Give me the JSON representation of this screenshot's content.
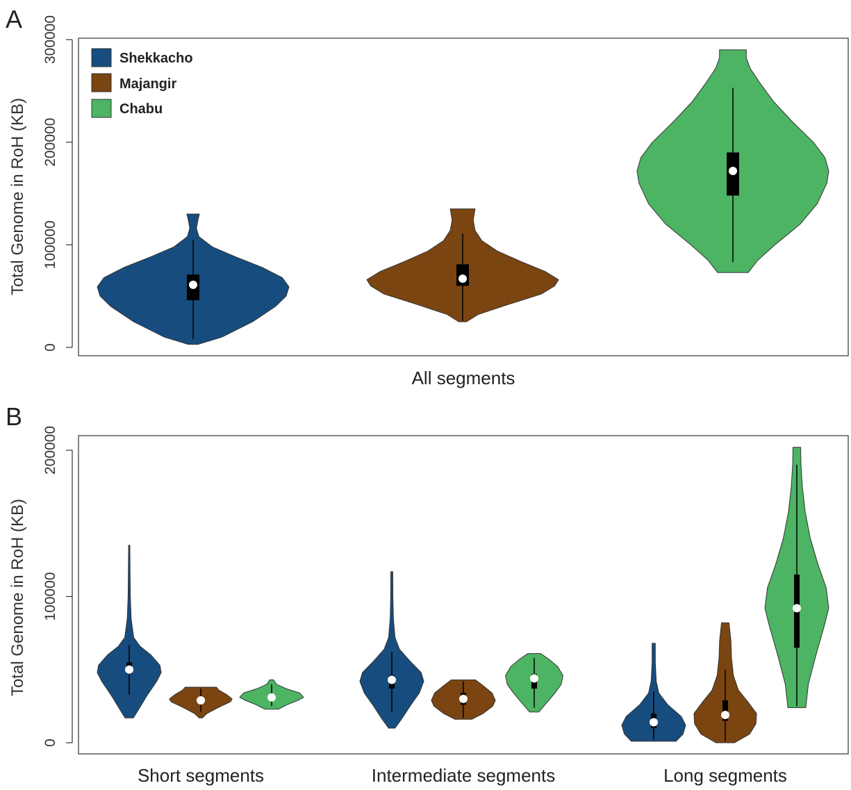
{
  "colors": {
    "Shekkacho": "#174C7E",
    "Majangir": "#7A4511",
    "Chabu": "#4CB463"
  },
  "chart_data": [
    {
      "panel": "A",
      "type": "violin",
      "ylabel": "Total Genome in RoH (KB)",
      "ylim": [
        0,
        300000
      ],
      "yticks": [
        0,
        100000,
        200000,
        300000
      ],
      "ytick_labels": [
        "0",
        "100000",
        "200000",
        "300000"
      ],
      "categories": [
        "All segments"
      ],
      "legend": {
        "placement": "top-left",
        "entries": [
          "Shekkacho",
          "Majangir",
          "Chabu"
        ]
      },
      "series": [
        {
          "name": "Shekkacho",
          "category": "All segments",
          "min": 3000,
          "max": 130000,
          "whisker_low": 8000,
          "whisker_high": 105000,
          "q1": 46000,
          "median": 61000,
          "q3": 71000,
          "profile": [
            [
              3000,
              0.05
            ],
            [
              10000,
              0.3
            ],
            [
              25000,
              0.62
            ],
            [
              40000,
              0.86
            ],
            [
              50000,
              0.97
            ],
            [
              59000,
              1.0
            ],
            [
              68000,
              0.93
            ],
            [
              78000,
              0.72
            ],
            [
              88000,
              0.45
            ],
            [
              98000,
              0.2
            ],
            [
              108000,
              0.06
            ],
            [
              116000,
              0.035
            ],
            [
              124000,
              0.05
            ],
            [
              130000,
              0.065
            ]
          ]
        },
        {
          "name": "Majangir",
          "category": "All segments",
          "min": 25000,
          "max": 135000,
          "whisker_low": 26000,
          "whisker_high": 111000,
          "q1": 60000,
          "median": 67000,
          "q3": 81000,
          "profile": [
            [
              25000,
              0.04
            ],
            [
              32000,
              0.16
            ],
            [
              42000,
              0.48
            ],
            [
              52000,
              0.82
            ],
            [
              60000,
              0.96
            ],
            [
              66000,
              1.0
            ],
            [
              74000,
              0.86
            ],
            [
              84000,
              0.6
            ],
            [
              94000,
              0.36
            ],
            [
              104000,
              0.2
            ],
            [
              114000,
              0.13
            ],
            [
              124000,
              0.11
            ],
            [
              130000,
              0.12
            ],
            [
              135000,
              0.13
            ]
          ]
        },
        {
          "name": "Chabu",
          "category": "All segments",
          "min": 73000,
          "max": 290000,
          "whisker_low": 83000,
          "whisker_high": 253000,
          "q1": 148000,
          "median": 172000,
          "q3": 190000,
          "profile": [
            [
              73000,
              0.16
            ],
            [
              85000,
              0.26
            ],
            [
              100000,
              0.44
            ],
            [
              120000,
              0.7
            ],
            [
              140000,
              0.88
            ],
            [
              160000,
              0.98
            ],
            [
              172000,
              1.0
            ],
            [
              185000,
              0.96
            ],
            [
              200000,
              0.84
            ],
            [
              220000,
              0.62
            ],
            [
              240000,
              0.42
            ],
            [
              258000,
              0.28
            ],
            [
              272000,
              0.18
            ],
            [
              282000,
              0.14
            ],
            [
              290000,
              0.14
            ]
          ]
        }
      ]
    },
    {
      "panel": "B",
      "type": "violin",
      "ylabel": "Total Genome in RoH (KB)",
      "ylim": [
        0,
        200000
      ],
      "yticks": [
        0,
        100000,
        200000
      ],
      "ytick_labels": [
        "0",
        "100000",
        "200000"
      ],
      "categories": [
        "Short segments",
        "Intermediate segments",
        "Long segments"
      ],
      "series": [
        {
          "name": "Shekkacho",
          "category": "Short segments",
          "min": 17000,
          "max": 135000,
          "whisker_low": 33000,
          "whisker_high": 67000,
          "q1": 47000,
          "median": 50000,
          "q3": 55000,
          "profile": [
            [
              17000,
              0.13
            ],
            [
              23000,
              0.3
            ],
            [
              32000,
              0.55
            ],
            [
              42000,
              0.86
            ],
            [
              48000,
              1.0
            ],
            [
              53000,
              0.96
            ],
            [
              60000,
              0.68
            ],
            [
              66000,
              0.34
            ],
            [
              72000,
              0.14
            ],
            [
              85000,
              0.06
            ],
            [
              100000,
              0.035
            ],
            [
              118000,
              0.025
            ],
            [
              135000,
              0.02
            ]
          ]
        },
        {
          "name": "Majangir",
          "category": "Short segments",
          "min": 17000,
          "max": 38000,
          "whisker_low": 21000,
          "whisker_high": 37000,
          "q1": 28000,
          "median": 29000,
          "q3": 31000,
          "profile": [
            [
              17000,
              0.05
            ],
            [
              20000,
              0.2
            ],
            [
              24000,
              0.55
            ],
            [
              28000,
              0.95
            ],
            [
              30000,
              1.0
            ],
            [
              33000,
              0.82
            ],
            [
              36000,
              0.58
            ],
            [
              38000,
              0.5
            ]
          ]
        },
        {
          "name": "Chabu",
          "category": "Short segments",
          "min": 23000,
          "max": 43000,
          "whisker_low": 25000,
          "whisker_high": 40000,
          "q1": 29000,
          "median": 31000,
          "q3": 32000,
          "profile": [
            [
              23000,
              0.22
            ],
            [
              26000,
              0.48
            ],
            [
              29000,
              0.82
            ],
            [
              31000,
              1.0
            ],
            [
              34000,
              0.88
            ],
            [
              37000,
              0.45
            ],
            [
              40000,
              0.15
            ],
            [
              43000,
              0.06
            ]
          ]
        },
        {
          "name": "Shekkacho",
          "category": "Intermediate segments",
          "min": 10000,
          "max": 117000,
          "whisker_low": 21000,
          "whisker_high": 62000,
          "q1": 37000,
          "median": 43000,
          "q3": 46000,
          "profile": [
            [
              10000,
              0.1
            ],
            [
              16000,
              0.3
            ],
            [
              26000,
              0.6
            ],
            [
              34000,
              0.86
            ],
            [
              42000,
              1.0
            ],
            [
              48000,
              0.92
            ],
            [
              56000,
              0.56
            ],
            [
              64000,
              0.24
            ],
            [
              72000,
              0.1
            ],
            [
              85000,
              0.05
            ],
            [
              100000,
              0.035
            ],
            [
              117000,
              0.03
            ]
          ]
        },
        {
          "name": "Majangir",
          "category": "Intermediate segments",
          "min": 16000,
          "max": 43000,
          "whisker_low": 17000,
          "whisker_high": 42000,
          "q1": 26000,
          "median": 30000,
          "q3": 34000,
          "profile": [
            [
              16000,
              0.26
            ],
            [
              20000,
              0.62
            ],
            [
              25000,
              0.92
            ],
            [
              29000,
              1.0
            ],
            [
              34000,
              0.9
            ],
            [
              39000,
              0.62
            ],
            [
              43000,
              0.38
            ]
          ]
        },
        {
          "name": "Chabu",
          "category": "Intermediate segments",
          "min": 21000,
          "max": 61000,
          "whisker_low": 24000,
          "whisker_high": 58000,
          "q1": 37000,
          "median": 44000,
          "q3": 47000,
          "profile": [
            [
              21000,
              0.16
            ],
            [
              27000,
              0.42
            ],
            [
              34000,
              0.72
            ],
            [
              40000,
              0.94
            ],
            [
              46000,
              1.0
            ],
            [
              52000,
              0.82
            ],
            [
              57000,
              0.52
            ],
            [
              61000,
              0.22
            ]
          ]
        },
        {
          "name": "Shekkacho",
          "category": "Long segments",
          "min": 1000,
          "max": 68000,
          "whisker_low": 2000,
          "whisker_high": 35000,
          "q1": 10000,
          "median": 14000,
          "q3": 20000,
          "profile": [
            [
              1000,
              0.7
            ],
            [
              6000,
              0.92
            ],
            [
              12000,
              1.0
            ],
            [
              18000,
              0.86
            ],
            [
              26000,
              0.44
            ],
            [
              34000,
              0.16
            ],
            [
              42000,
              0.08
            ],
            [
              55000,
              0.05
            ],
            [
              68000,
              0.05
            ]
          ]
        },
        {
          "name": "Majangir",
          "category": "Long segments",
          "min": 0,
          "max": 82000,
          "whisker_low": 1000,
          "whisker_high": 50000,
          "q1": 15000,
          "median": 19000,
          "q3": 29000,
          "profile": [
            [
              0,
              0.3
            ],
            [
              6000,
              0.78
            ],
            [
              13000,
              0.98
            ],
            [
              20000,
              1.0
            ],
            [
              28000,
              0.72
            ],
            [
              36000,
              0.42
            ],
            [
              46000,
              0.26
            ],
            [
              58000,
              0.2
            ],
            [
              70000,
              0.18
            ],
            [
              82000,
              0.12
            ]
          ]
        },
        {
          "name": "Chabu",
          "category": "Long segments",
          "min": 24000,
          "max": 202000,
          "whisker_low": 25000,
          "whisker_high": 190000,
          "q1": 65000,
          "median": 92000,
          "q3": 115000,
          "profile": [
            [
              24000,
              0.28
            ],
            [
              40000,
              0.36
            ],
            [
              60000,
              0.6
            ],
            [
              80000,
              0.86
            ],
            [
              92000,
              1.0
            ],
            [
              106000,
              0.92
            ],
            [
              122000,
              0.66
            ],
            [
              140000,
              0.42
            ],
            [
              158000,
              0.26
            ],
            [
              176000,
              0.17
            ],
            [
              190000,
              0.13
            ],
            [
              202000,
              0.12
            ]
          ]
        }
      ]
    }
  ]
}
